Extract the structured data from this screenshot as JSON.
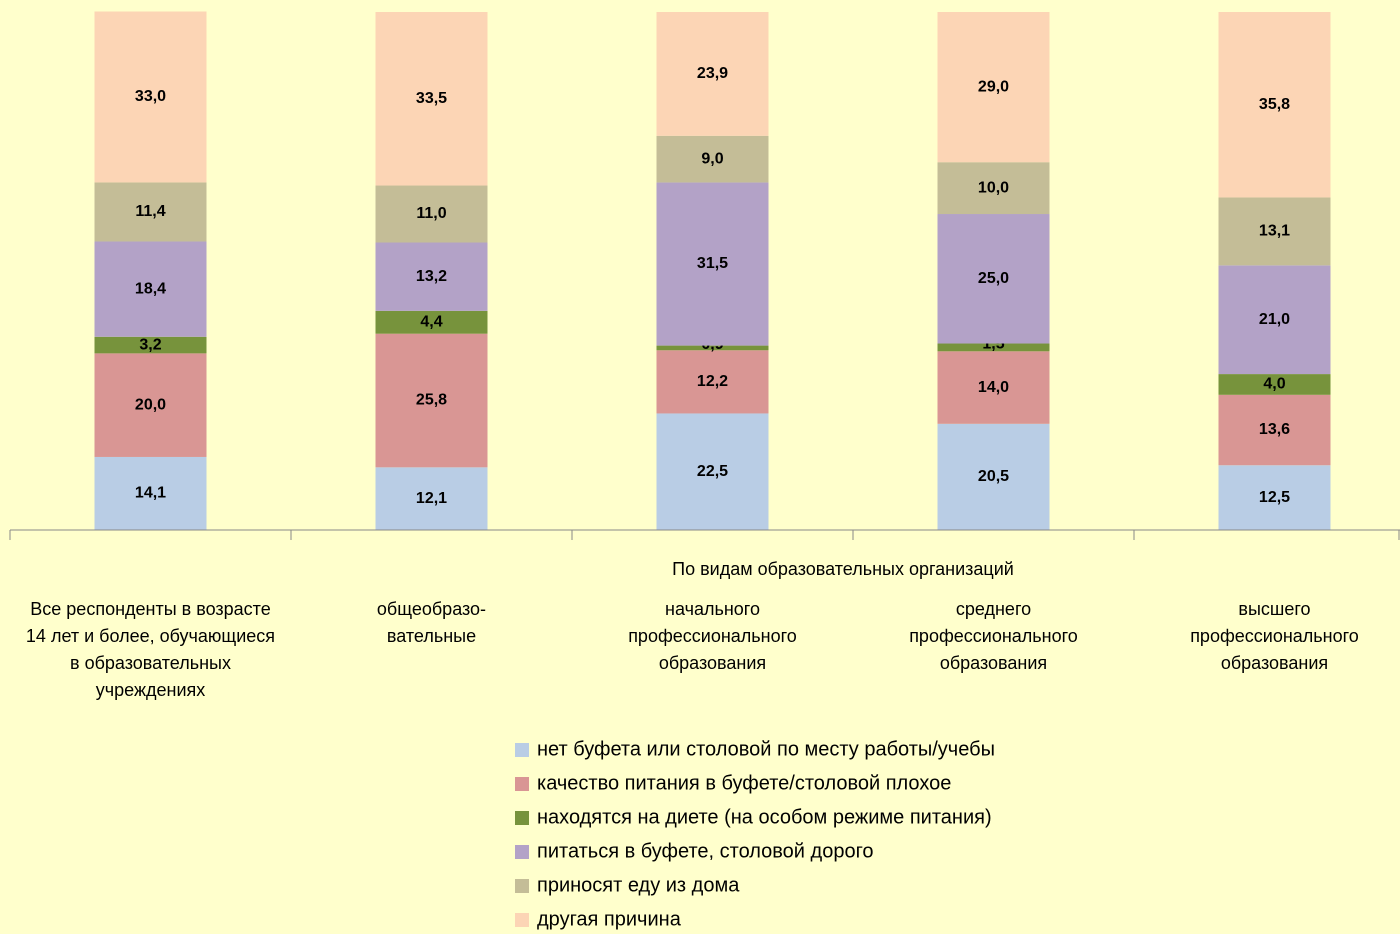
{
  "chart_data": {
    "type": "stacked_bar",
    "categories": [
      "Все респонденты в возрасте 14 лет и более, обучающиеся в образовательных учреждениях",
      "общеобразо-вательные",
      "начального профессионального образования",
      "среднего профессионального образования",
      "высшего профессионального образования"
    ],
    "category_group_label": "По видам образовательных организаций",
    "ylim": [
      0,
      100
    ],
    "series": [
      {
        "name": "нет буфета или столовой по месту работы/учебы",
        "color": "#b9cde5",
        "values": [
          14.1,
          12.1,
          22.5,
          20.5,
          12.5
        ],
        "value_labels": [
          "14,1",
          "12,1",
          "22,5",
          "20,5",
          "12,5"
        ]
      },
      {
        "name": "качество питания в буфете/столовой плохое",
        "color": "#d99694",
        "values": [
          20.0,
          25.8,
          12.2,
          14.0,
          13.6
        ],
        "value_labels": [
          "20,0",
          "25,8",
          "12,2",
          "14,0",
          "13,6"
        ]
      },
      {
        "name": "находятся на диете (на особом режиме питания)",
        "color": "#77933c",
        "values": [
          3.2,
          4.4,
          0.9,
          1.5,
          4.0
        ],
        "value_labels": [
          "3,2",
          "4,4",
          "0,9",
          "1,5",
          "4,0"
        ]
      },
      {
        "name": "питаться в буфете, столовой дорого",
        "color": "#b3a2c7",
        "values": [
          18.4,
          13.2,
          31.5,
          25.0,
          21.0
        ],
        "value_labels": [
          "18,4",
          "13,2",
          "31,5",
          "25,0",
          "21,0"
        ]
      },
      {
        "name": "приносят еду из дома",
        "color": "#c4bd97",
        "values": [
          11.4,
          11.0,
          9.0,
          10.0,
          13.1
        ],
        "value_labels": [
          "11,4",
          "11,0",
          "9,0",
          "10,0",
          "13,1"
        ]
      },
      {
        "name": "другая причина",
        "color": "#fcd5b5",
        "values": [
          33.0,
          33.5,
          23.9,
          29.0,
          35.8
        ],
        "value_labels": [
          "33,0",
          "33,5",
          "23,9",
          "29,0",
          "35,8"
        ]
      }
    ]
  }
}
